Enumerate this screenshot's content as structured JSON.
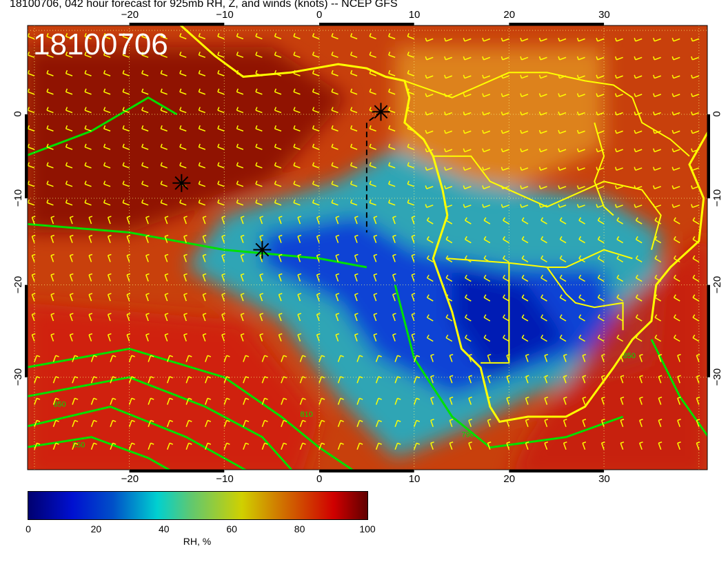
{
  "title": "18100706, 042 hour forecast for 925mb RH, Z, and winds (knots) -- NCEP GFS",
  "date_label": "18100706",
  "map": {
    "lon_range": [
      -31,
      41
    ],
    "lat_range": [
      -39,
      10.5
    ],
    "lon_ticks": [
      "−20",
      "−10",
      "0",
      "10",
      "20",
      "30"
    ],
    "lon_tick_values": [
      -20,
      -10,
      0,
      10,
      20,
      30
    ],
    "lat_ticks": [
      "0",
      "−10",
      "−20",
      "−30"
    ],
    "lat_tick_values": [
      0,
      -10,
      -20,
      -30
    ],
    "colors": {
      "coast": "#ffff00",
      "contour": "#00e000",
      "barbs": "#ffff00",
      "markers": "#000000"
    },
    "markers": [
      {
        "lon": -14.5,
        "lat": -8.2
      },
      {
        "lon": -6,
        "lat": -16
      },
      {
        "lon": 6.5,
        "lat": 0.3
      }
    ],
    "contour_labels": [
      "850",
      "850",
      "810",
      "790",
      "850"
    ]
  },
  "colorbar": {
    "ticks": [
      "0",
      "20",
      "40",
      "60",
      "80",
      "100"
    ],
    "label": "RH, %",
    "range": [
      0,
      100
    ]
  }
}
